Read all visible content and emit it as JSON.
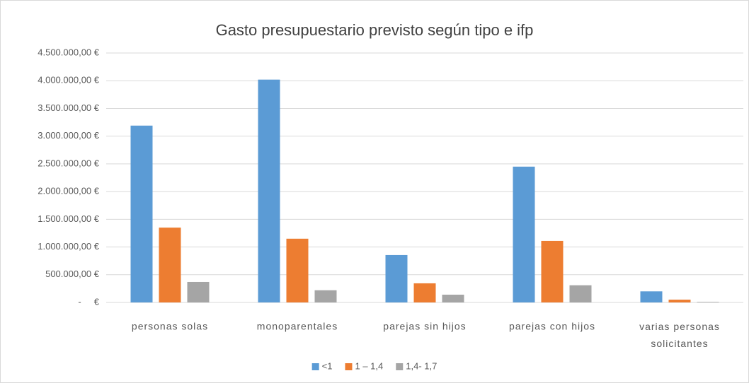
{
  "chart_data": {
    "type": "bar",
    "title": "Gasto presupuestario previsto según tipo e ifp",
    "categories": [
      "personas solas",
      "monoparentales",
      "parejas sin hijos",
      "parejas con hijos",
      "varias personas solicitantes"
    ],
    "series": [
      {
        "name": "<1",
        "color": "#5b9bd5",
        "values": [
          3190000,
          4020000,
          855000,
          2450000,
          200000
        ]
      },
      {
        "name": "1 – 1,4",
        "color": "#ed7d31",
        "values": [
          1350000,
          1150000,
          345000,
          1110000,
          50000
        ]
      },
      {
        "name": "1,4- 1,7",
        "color": "#a5a5a5",
        "values": [
          370000,
          220000,
          140000,
          310000,
          10000
        ]
      }
    ],
    "ylim": [
      0,
      4500000
    ],
    "yticks": [
      {
        "value": 0,
        "label": "-     €"
      },
      {
        "value": 500000,
        "label": "500.000,00 €"
      },
      {
        "value": 1000000,
        "label": "1.000.000,00 €"
      },
      {
        "value": 1500000,
        "label": "1.500.000,00 €"
      },
      {
        "value": 2000000,
        "label": "2.000.000,00 €"
      },
      {
        "value": 2500000,
        "label": "2.500.000,00 €"
      },
      {
        "value": 3000000,
        "label": "3.000.000,00 €"
      },
      {
        "value": 3500000,
        "label": "3.500.000,00 €"
      },
      {
        "value": 4000000,
        "label": "4.000.000,00 €"
      },
      {
        "value": 4500000,
        "label": "4.500.000,00 €"
      }
    ],
    "grid": true,
    "legend": "bottom"
  }
}
